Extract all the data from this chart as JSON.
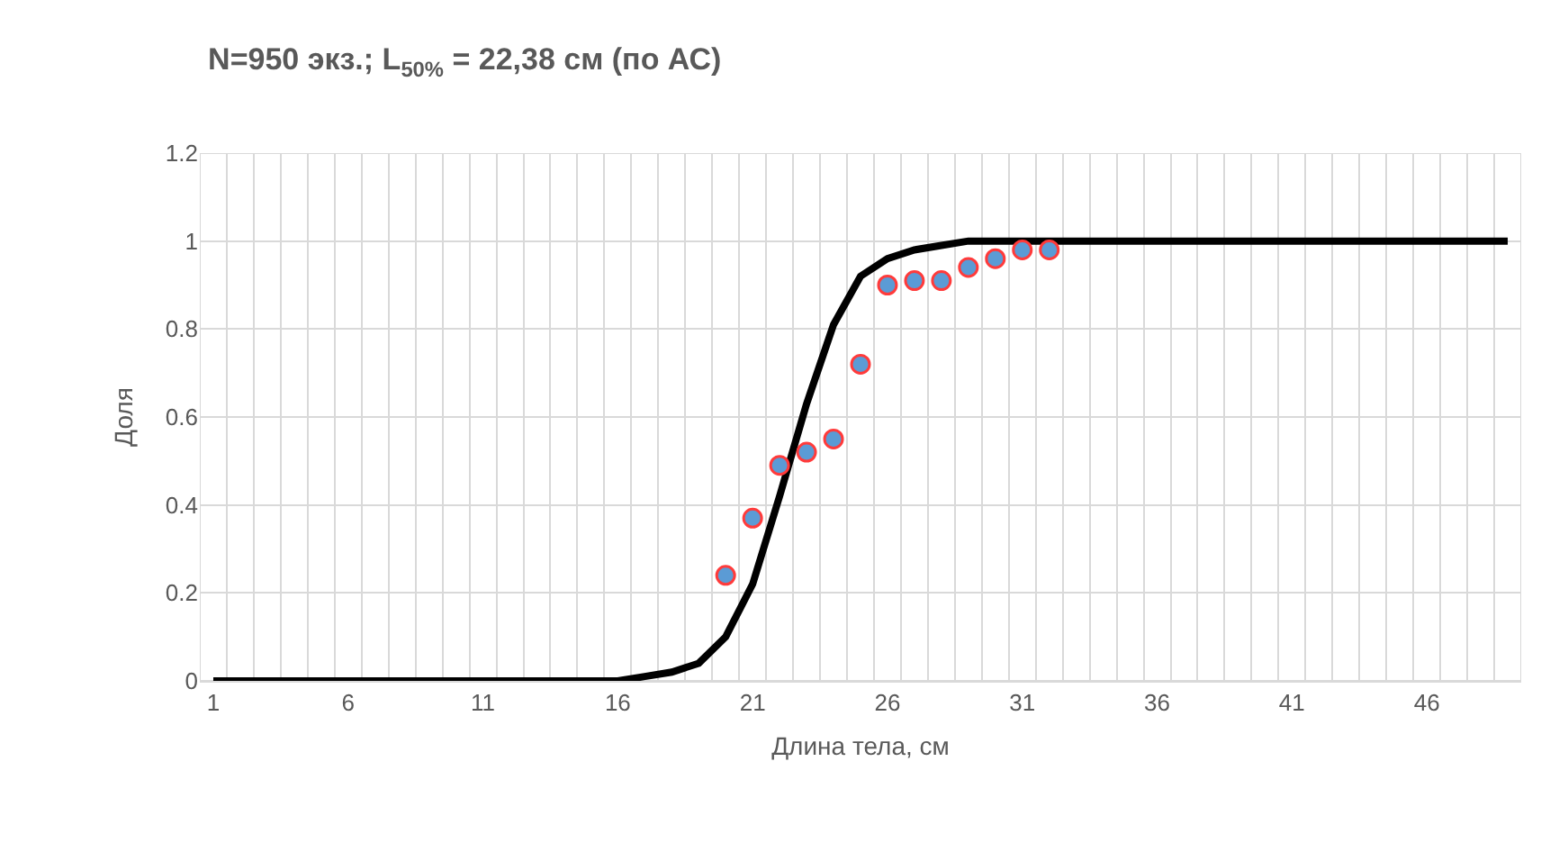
{
  "chart_data": {
    "type": "line",
    "title": "N=950 экз.; L$_{50%}$ = 22,38 см (по АС)",
    "xlabel": "Длина тела, см",
    "ylabel": "Доля",
    "xlim": [
      0.5,
      49.5
    ],
    "xticks": [
      1,
      6,
      11,
      16,
      21,
      26,
      31,
      36,
      41,
      46
    ],
    "ylim": [
      0,
      1.2
    ],
    "yticks": [
      0,
      0.2,
      0.4,
      0.6,
      0.8,
      1,
      1.2
    ],
    "grid": true,
    "series": [
      {
        "color": "#000000",
        "line_style": "solid",
        "marker": "none",
        "x": [
          1,
          2,
          3,
          4,
          5,
          6,
          7,
          8,
          9,
          10,
          11,
          12,
          13,
          14,
          15,
          16,
          17,
          18,
          19,
          20,
          21,
          22,
          23,
          24,
          25,
          26,
          27,
          28,
          29,
          30,
          31,
          32,
          33,
          34,
          35,
          36,
          37,
          38,
          39,
          40,
          41,
          42,
          43,
          44,
          45,
          46,
          47,
          48,
          49
        ],
        "values": [
          0,
          0,
          0,
          0,
          0,
          0,
          0,
          0,
          0,
          0,
          0,
          0,
          0,
          0,
          0,
          0,
          0.01,
          0.02,
          0.04,
          0.1,
          0.22,
          0.42,
          0.63,
          0.81,
          0.92,
          0.96,
          0.98,
          0.99,
          1,
          1,
          1,
          1,
          1,
          1,
          1,
          1,
          1,
          1,
          1,
          1,
          1,
          1,
          1,
          1,
          1,
          1,
          1,
          1,
          1
        ]
      },
      {
        "type": "scatter",
        "color": "#5b9bd5",
        "marker": "circle",
        "x": [
          20,
          21,
          22,
          23,
          24,
          25,
          26,
          27,
          28,
          29,
          30,
          31,
          32
        ],
        "values": [
          0.24,
          0.37,
          0.49,
          0.52,
          0.55,
          0.72,
          0.9,
          0.91,
          0.91,
          0.94,
          0.96,
          0.98,
          0.98
        ]
      }
    ]
  }
}
